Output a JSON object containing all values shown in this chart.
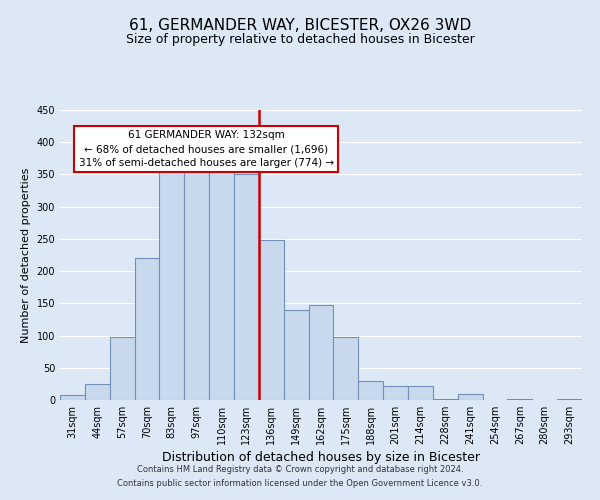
{
  "title": "61, GERMANDER WAY, BICESTER, OX26 3WD",
  "subtitle": "Size of property relative to detached houses in Bicester",
  "xlabel": "Distribution of detached houses by size in Bicester",
  "ylabel": "Number of detached properties",
  "bar_labels": [
    "31sqm",
    "44sqm",
    "57sqm",
    "70sqm",
    "83sqm",
    "97sqm",
    "110sqm",
    "123sqm",
    "136sqm",
    "149sqm",
    "162sqm",
    "175sqm",
    "188sqm",
    "201sqm",
    "214sqm",
    "228sqm",
    "241sqm",
    "254sqm",
    "267sqm",
    "280sqm",
    "293sqm"
  ],
  "bar_values": [
    8,
    25,
    98,
    220,
    358,
    365,
    365,
    350,
    248,
    140,
    148,
    97,
    30,
    22,
    22,
    2,
    10,
    0,
    2,
    0,
    2
  ],
  "bar_color": "#c8d8ed",
  "bar_edge_color": "#7090b8",
  "vline_color": "#cc0000",
  "annotation_title": "61 GERMANDER WAY: 132sqm",
  "annotation_line1": "← 68% of detached houses are smaller (1,696)",
  "annotation_line2": "31% of semi-detached houses are larger (774) →",
  "annotation_box_color": "#ffffff",
  "annotation_box_edge": "#cc0000",
  "ylim": [
    0,
    450
  ],
  "yticks": [
    0,
    50,
    100,
    150,
    200,
    250,
    300,
    350,
    400,
    450
  ],
  "footer1": "Contains HM Land Registry data © Crown copyright and database right 2024.",
  "footer2": "Contains public sector information licensed under the Open Government Licence v3.0.",
  "bg_color": "#dce8f5",
  "grid_color": "#ffffff",
  "title_fontsize": 11,
  "subtitle_fontsize": 9,
  "xlabel_fontsize": 9,
  "ylabel_fontsize": 8,
  "tick_fontsize": 7,
  "annotation_fontsize": 7.5,
  "footer_fontsize": 6
}
